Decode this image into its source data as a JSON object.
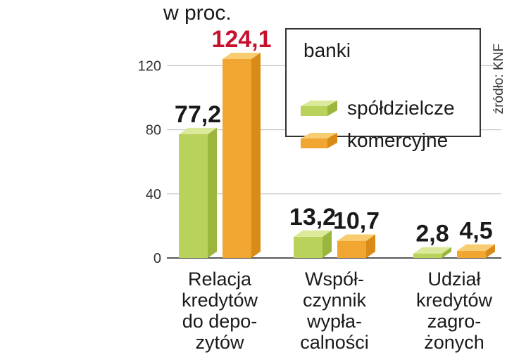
{
  "unit_label": "w proc.",
  "source": "źródło: KNF",
  "legend": {
    "title": "banki",
    "items": [
      {
        "label": "spółdzielcze",
        "color": "#b9d25c"
      },
      {
        "label": "komercyjne",
        "color": "#f0a630"
      }
    ]
  },
  "chart_data": {
    "type": "bar",
    "ylim": [
      0,
      120
    ],
    "yticks": [
      "0",
      "40",
      "80",
      "120"
    ],
    "categories": [
      "Relacja\nkredytów\ndo depo-\nzytów",
      "Współ-\nczynnik\nwypła-\ncalności",
      "Udział\nkredytów\nzagro-\nżonych"
    ],
    "series": [
      {
        "name": "spółdzielcze",
        "values": [
          77.2,
          13.2,
          2.8
        ],
        "labels": [
          "77,2",
          "13,2",
          "2,8"
        ],
        "color": "#b9d25c"
      },
      {
        "name": "komercyjne",
        "values": [
          124.1,
          10.7,
          4.5
        ],
        "labels": [
          "124,1",
          "10,7",
          "4,5"
        ],
        "color": "#f0a630"
      }
    ],
    "highlight_label_color": "#c8102e",
    "grid": true
  }
}
